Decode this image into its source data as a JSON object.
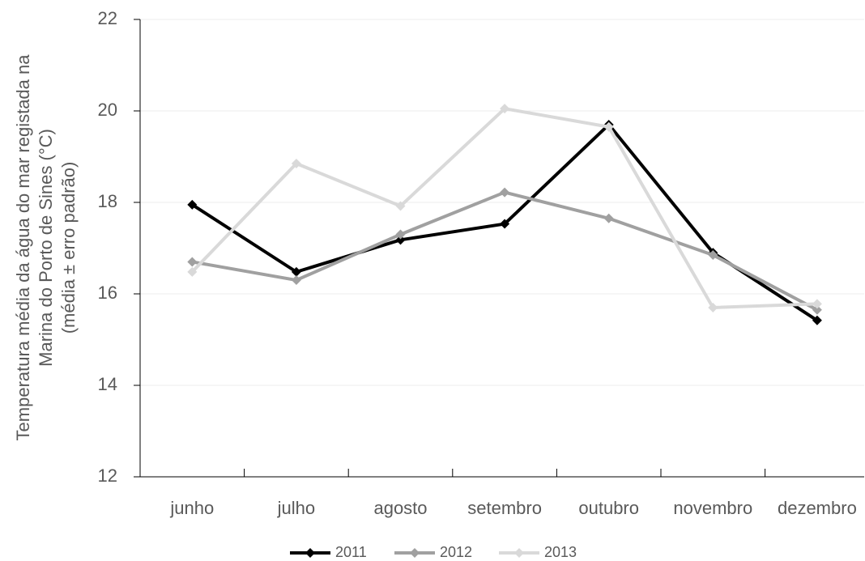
{
  "chart_data": {
    "type": "line",
    "y_label": [
      "Temperatura média da água do mar registada na",
      "Marina do Porto de Sines (°C)",
      "(média ± erro padrão)"
    ],
    "categories": [
      "junho",
      "julho",
      "agosto",
      "setembro",
      "outubro",
      "novembro",
      "dezembro"
    ],
    "series": [
      {
        "name": "2011",
        "color": "#000000",
        "values": [
          17.95,
          16.48,
          17.18,
          17.53,
          19.7,
          16.9,
          15.42
        ]
      },
      {
        "name": "2012",
        "color": "#a0a0a0",
        "values": [
          16.7,
          16.3,
          17.3,
          18.22,
          17.65,
          16.85,
          15.65
        ]
      },
      {
        "name": "2013",
        "color": "#d9d9d9",
        "values": [
          16.48,
          18.85,
          17.92,
          20.05,
          19.65,
          15.7,
          15.78
        ]
      }
    ],
    "ylim": [
      12,
      22
    ],
    "yticks": [
      12,
      14,
      16,
      18,
      20,
      22
    ],
    "grid": true,
    "legend": "bottom"
  }
}
